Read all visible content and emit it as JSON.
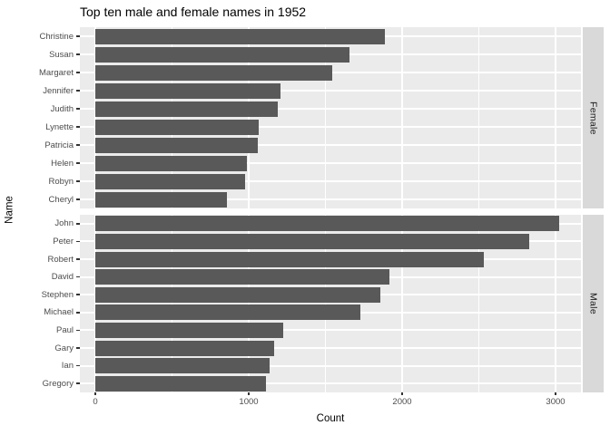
{
  "title": "Top ten male and female names in 1952",
  "chart_data": {
    "type": "bar",
    "orientation": "horizontal",
    "title": "Top ten male and female names in 1952",
    "xlabel": "Count",
    "ylabel": "Name",
    "xlim": [
      -100,
      3170
    ],
    "x_major_ticks": [
      0,
      1000,
      2000,
      3000
    ],
    "x_minor_gridlines": [
      500,
      1500,
      2500
    ],
    "grid": "on",
    "legend": "none",
    "facet_strip_position": "right",
    "facets": [
      {
        "label": "Female",
        "categories": [
          "Christine",
          "Susan",
          "Margaret",
          "Jennifer",
          "Judith",
          "Lynette",
          "Patricia",
          "Helen",
          "Robyn",
          "Cheryl"
        ],
        "values": [
          1890,
          1655,
          1545,
          1210,
          1190,
          1065,
          1060,
          990,
          975,
          860
        ]
      },
      {
        "label": "Male",
        "categories": [
          "John",
          "Peter",
          "Robert",
          "David",
          "Stephen",
          "Michael",
          "Paul",
          "Gary",
          "Ian",
          "Gregory"
        ],
        "values": [
          3025,
          2830,
          2530,
          1915,
          1860,
          1730,
          1225,
          1165,
          1135,
          1110
        ]
      }
    ],
    "colors": {
      "bar": "#595959",
      "panel_background": "#EBEBEB",
      "strip_background": "#D9D9D9",
      "gridline": "#FFFFFF",
      "tick_text": "#4D4D4D",
      "title_text": "#000000"
    }
  }
}
